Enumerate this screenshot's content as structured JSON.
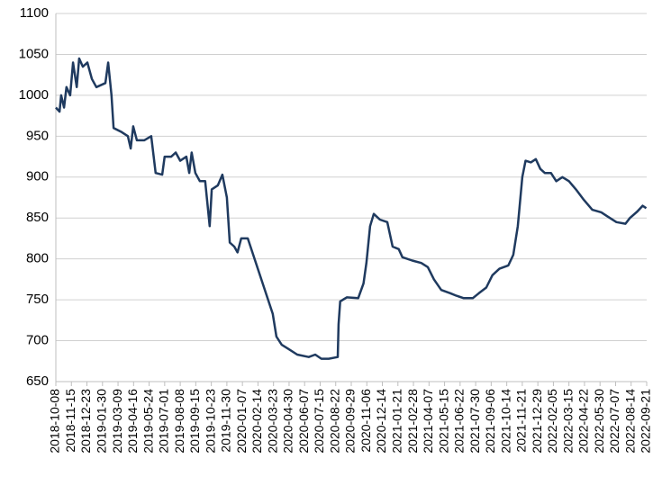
{
  "chart_data": {
    "type": "line",
    "x": [
      "2018-10-08",
      "2018-10-17",
      "2018-10-21",
      "2018-10-28",
      "2018-11-03",
      "2018-11-12",
      "2018-11-19",
      "2018-11-28",
      "2018-12-04",
      "2018-12-13",
      "2018-12-24",
      "2019-01-04",
      "2019-01-15",
      "2019-02-06",
      "2019-02-13",
      "2019-02-21",
      "2019-02-26",
      "2019-03-18",
      "2019-04-02",
      "2019-04-09",
      "2019-04-15",
      "2019-04-24",
      "2019-05-12",
      "2019-05-29",
      "2019-06-09",
      "2019-06-25",
      "2019-07-01",
      "2019-07-17",
      "2019-07-28",
      "2019-08-08",
      "2019-08-23",
      "2019-08-30",
      "2019-09-05",
      "2019-09-14",
      "2019-09-25",
      "2019-10-08",
      "2019-10-19",
      "2019-10-24",
      "2019-11-08",
      "2019-11-19",
      "2019-11-30",
      "2019-12-07",
      "2019-12-18",
      "2019-12-26",
      "2020-01-04",
      "2020-01-20",
      "2020-03-21",
      "2020-03-30",
      "2020-04-12",
      "2020-04-28",
      "2020-05-20",
      "2020-06-17",
      "2020-07-03",
      "2020-07-18",
      "2020-08-05",
      "2020-08-27",
      "2020-08-29",
      "2020-09-02",
      "2020-09-18",
      "2020-10-16",
      "2020-10-29",
      "2020-11-05",
      "2020-11-14",
      "2020-11-23",
      "2020-12-08",
      "2020-12-26",
      "2021-01-08",
      "2021-01-23",
      "2021-02-01",
      "2021-02-25",
      "2021-03-19",
      "2021-04-04",
      "2021-04-19",
      "2021-05-07",
      "2021-05-29",
      "2021-06-13",
      "2021-07-01",
      "2021-07-23",
      "2021-08-07",
      "2021-08-25",
      "2021-09-09",
      "2021-09-26",
      "2021-10-18",
      "2021-10-30",
      "2021-11-10",
      "2021-11-21",
      "2021-11-29",
      "2021-12-12",
      "2021-12-24",
      "2022-01-04",
      "2022-01-15",
      "2022-01-30",
      "2022-02-12",
      "2022-02-27",
      "2022-03-15",
      "2022-04-01",
      "2022-04-19",
      "2022-05-11",
      "2022-06-02",
      "2022-06-17",
      "2022-07-09",
      "2022-07-31",
      "2022-08-11",
      "2022-08-29",
      "2022-09-11",
      "2022-09-20"
    ],
    "series": [
      {
        "color": "#1f3a5f",
        "values": [
          985,
          980,
          1000,
          985,
          1010,
          1000,
          1040,
          1010,
          1045,
          1035,
          1040,
          1020,
          1010,
          1015,
          1040,
          1000,
          960,
          955,
          950,
          935,
          962,
          945,
          945,
          950,
          905,
          903,
          925,
          925,
          930,
          920,
          925,
          905,
          930,
          905,
          895,
          895,
          840,
          885,
          890,
          903,
          875,
          820,
          815,
          808,
          825,
          825,
          733,
          705,
          695,
          690,
          683,
          680,
          683,
          678,
          678,
          680,
          720,
          748,
          753,
          752,
          770,
          795,
          840,
          855,
          848,
          845,
          815,
          812,
          802,
          798,
          795,
          790,
          775,
          762,
          758,
          755,
          752,
          752,
          758,
          765,
          780,
          788,
          792,
          805,
          840,
          900,
          920,
          918,
          922,
          910,
          905,
          905,
          895,
          900,
          895,
          885,
          873,
          860,
          857,
          852,
          845,
          843,
          850,
          858,
          865,
          862
        ]
      }
    ],
    "xlim": [
      "2018-10-08",
      "2022-09-21"
    ],
    "xticks": [
      "2018-10-08",
      "2018-11-15",
      "2018-12-23",
      "2019-01-30",
      "2019-03-09",
      "2019-04-16",
      "2019-05-24",
      "2019-07-01",
      "2019-08-08",
      "2019-09-15",
      "2019-10-23",
      "2019-11-30",
      "2020-01-07",
      "2020-02-14",
      "2020-03-23",
      "2020-04-30",
      "2020-06-07",
      "2020-07-15",
      "2020-08-22",
      "2020-09-29",
      "2020-11-06",
      "2020-12-14",
      "2021-01-21",
      "2021-02-28",
      "2021-04-07",
      "2021-05-15",
      "2021-06-22",
      "2021-07-30",
      "2021-09-06",
      "2021-10-14",
      "2021-11-21",
      "2021-12-29",
      "2022-02-05",
      "2022-03-15",
      "2022-04-22",
      "2022-05-30",
      "2022-07-07",
      "2022-08-14",
      "2022-09-21"
    ],
    "ylim": [
      650,
      1100
    ],
    "yticks": [
      650,
      700,
      750,
      800,
      850,
      900,
      950,
      1000,
      1050,
      1100
    ],
    "grid": true
  }
}
